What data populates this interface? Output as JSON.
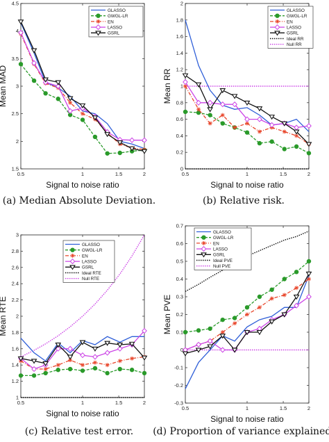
{
  "colors": {
    "GLASSO": "#2f5fd8",
    "GWGL-LR": "#2a9a2a",
    "EN": "#e8452a",
    "LASSO": "#cc44e6",
    "GSRL": "#111111",
    "Ideal": "#111111",
    "Null": "#cc44e6"
  },
  "chart_data": [
    {
      "type": "line",
      "caption": "(a) Median Absolute Deviation.",
      "xlabel": "Signal to noise ratio",
      "ylabel": "Mean MAD",
      "xlog": true,
      "xlim": [
        0.5,
        2
      ],
      "ylim": [
        1.5,
        4.5
      ],
      "xticks": [
        0.5,
        1,
        1.5,
        2
      ],
      "xticklabels": [
        "0.5",
        "1",
        "1.5",
        "2"
      ],
      "yticks": [
        1.5,
        2,
        2.5,
        3,
        3.5,
        4,
        4.5
      ],
      "yticklabels": [
        "1.5",
        "2",
        "2.5",
        "3",
        "3.5",
        "4",
        "4.5"
      ],
      "x": [
        0.5,
        0.58,
        0.66,
        0.76,
        0.87,
        1.0,
        1.15,
        1.32,
        1.52,
        1.74,
        2.0
      ],
      "series": [
        {
          "name": "GLASSO",
          "values": [
            4.15,
            3.6,
            3.07,
            2.97,
            2.82,
            2.55,
            2.5,
            2.32,
            2.0,
            1.95,
            1.87
          ]
        },
        {
          "name": "GWGL-LR",
          "values": [
            3.4,
            3.1,
            2.87,
            2.77,
            2.48,
            2.39,
            2.08,
            1.78,
            1.79,
            1.82,
            1.84
          ]
        },
        {
          "name": "EN",
          "values": [
            3.95,
            3.4,
            3.05,
            2.97,
            2.7,
            2.5,
            2.4,
            2.15,
            1.95,
            1.88,
            1.85
          ]
        },
        {
          "name": "LASSO",
          "values": [
            3.97,
            3.42,
            3.07,
            3.0,
            2.55,
            2.6,
            2.45,
            2.17,
            2.03,
            2.02,
            2.02
          ]
        },
        {
          "name": "GSRL",
          "values": [
            4.17,
            3.65,
            3.12,
            3.07,
            2.78,
            2.65,
            2.43,
            2.13,
            1.98,
            1.87,
            1.82
          ]
        }
      ]
    },
    {
      "type": "line",
      "caption": "(b) Relative risk.",
      "xlabel": "Signal to noise ratio",
      "ylabel": "Mean RR",
      "xlog": true,
      "xlim": [
        0.5,
        2
      ],
      "ylim": [
        0,
        2
      ],
      "xticks": [
        0.5,
        1,
        1.5,
        2
      ],
      "xticklabels": [
        "0.5",
        "1",
        "1.5",
        "2"
      ],
      "yticks": [
        0,
        0.2,
        0.4,
        0.6,
        0.8,
        1,
        1.2,
        1.4,
        1.6,
        1.8,
        2
      ],
      "yticklabels": [
        "0",
        "0.2",
        "0.4",
        "0.6",
        "0.8",
        "1",
        "1.2",
        "1.4",
        "1.6",
        "1.8",
        "2"
      ],
      "x": [
        0.5,
        0.58,
        0.66,
        0.76,
        0.87,
        1.0,
        1.15,
        1.32,
        1.52,
        1.74,
        2.0
      ],
      "series": [
        {
          "name": "GLASSO",
          "values": [
            1.8,
            1.25,
            0.95,
            0.77,
            0.72,
            0.74,
            0.65,
            0.53,
            0.55,
            0.6,
            0.45
          ]
        },
        {
          "name": "GWGL-LR",
          "values": [
            0.69,
            0.68,
            0.65,
            0.55,
            0.5,
            0.44,
            0.31,
            0.33,
            0.24,
            0.27,
            0.19
          ]
        },
        {
          "name": "EN",
          "values": [
            1.0,
            0.72,
            0.55,
            0.65,
            0.5,
            0.55,
            0.45,
            0.5,
            0.45,
            0.4,
            0.3
          ]
        },
        {
          "name": "LASSO",
          "values": [
            1.05,
            0.8,
            0.8,
            0.78,
            0.78,
            0.6,
            0.6,
            0.53,
            0.55,
            0.5,
            0.52
          ]
        },
        {
          "name": "GSRL",
          "values": [
            1.13,
            1.02,
            0.72,
            0.95,
            0.88,
            0.8,
            0.73,
            0.63,
            0.55,
            0.45,
            0.3
          ]
        },
        {
          "name": "Ideal RR",
          "values": [
            0,
            0,
            0,
            0,
            0,
            0,
            0,
            0,
            0,
            0,
            0
          ]
        },
        {
          "name": "Null RR",
          "values": [
            1,
            1,
            1,
            1,
            1,
            1,
            1,
            1,
            1,
            1,
            1
          ]
        }
      ]
    },
    {
      "type": "line",
      "caption": "(c) Relative test error.",
      "xlabel": "Signal to noise ratio",
      "ylabel": "Mean RTE",
      "xlog": true,
      "xlim": [
        0.5,
        2
      ],
      "ylim": [
        1,
        3
      ],
      "xticks": [
        0.5,
        1,
        1.5,
        2
      ],
      "xticklabels": [
        "0.5",
        "1",
        "1.5",
        "2"
      ],
      "yticks": [
        1,
        1.2,
        1.4,
        1.6,
        1.8,
        2,
        2.2,
        2.4,
        2.6,
        2.8,
        3
      ],
      "yticklabels": [
        "1",
        "1.2",
        "1.4",
        "1.6",
        "1.8",
        "2",
        "2.2",
        "2.4",
        "2.6",
        "2.8",
        "3"
      ],
      "x": [
        0.5,
        0.58,
        0.66,
        0.76,
        0.87,
        1.0,
        1.15,
        1.32,
        1.52,
        1.74,
        2.0
      ],
      "series": [
        {
          "name": "GLASSO",
          "values": [
            1.73,
            1.55,
            1.45,
            1.67,
            1.55,
            1.7,
            1.65,
            1.75,
            1.68,
            1.75,
            1.75
          ]
        },
        {
          "name": "GWGL-LR",
          "values": [
            1.27,
            1.27,
            1.3,
            1.34,
            1.35,
            1.33,
            1.36,
            1.3,
            1.35,
            1.34,
            1.3
          ]
        },
        {
          "name": "EN",
          "values": [
            1.45,
            1.35,
            1.35,
            1.4,
            1.46,
            1.4,
            1.43,
            1.4,
            1.45,
            1.48,
            1.5
          ]
        },
        {
          "name": "LASSO",
          "values": [
            1.48,
            1.35,
            1.4,
            1.6,
            1.6,
            1.52,
            1.5,
            1.55,
            1.6,
            1.65,
            1.82
          ]
        },
        {
          "name": "GSRL",
          "values": [
            1.48,
            1.45,
            1.42,
            1.65,
            1.5,
            1.68,
            1.6,
            1.67,
            1.65,
            1.66,
            1.49
          ]
        },
        {
          "name": "Ideal RTE",
          "values": [
            1,
            1,
            1,
            1,
            1,
            1,
            1,
            1,
            1,
            1,
            1
          ]
        },
        {
          "name": "Null RTE",
          "values": [
            1.5,
            1.58,
            1.66,
            1.76,
            1.87,
            2.0,
            2.15,
            2.32,
            2.52,
            2.74,
            3.0
          ]
        }
      ]
    },
    {
      "type": "line",
      "caption": "(d) Proportion of variance explained.",
      "xlabel": "Signal to noise ratio",
      "ylabel": "Mean PVE",
      "xlog": true,
      "xlim": [
        0.5,
        2
      ],
      "ylim": [
        -0.3,
        0.7
      ],
      "xticks": [
        0.5,
        1,
        1.5,
        2
      ],
      "xticklabels": [
        "0.5",
        "1",
        "1.5",
        "2"
      ],
      "yticks": [
        -0.3,
        -0.2,
        -0.1,
        0,
        0.1,
        0.2,
        0.3,
        0.4,
        0.5,
        0.6,
        0.7
      ],
      "yticklabels": [
        "-0.3",
        "-0.2",
        "-0.1",
        "0",
        "0.1",
        "0.2",
        "0.3",
        "0.4",
        "0.5",
        "0.6",
        "0.7"
      ],
      "x": [
        0.5,
        0.58,
        0.66,
        0.76,
        0.87,
        1.0,
        1.15,
        1.32,
        1.52,
        1.74,
        2.0
      ],
      "series": [
        {
          "name": "GLASSO",
          "values": [
            -0.22,
            -0.07,
            0.0,
            0.08,
            0.05,
            0.13,
            0.17,
            0.19,
            0.24,
            0.24,
            0.42
          ]
        },
        {
          "name": "GWGL-LR",
          "values": [
            0.1,
            0.11,
            0.12,
            0.17,
            0.18,
            0.24,
            0.3,
            0.34,
            0.4,
            0.44,
            0.5
          ]
        },
        {
          "name": "EN",
          "values": [
            0.0,
            0.03,
            0.05,
            0.1,
            0.15,
            0.2,
            0.24,
            0.29,
            0.31,
            0.35,
            0.4
          ]
        },
        {
          "name": "LASSO",
          "values": [
            0.0,
            0.03,
            0.05,
            0.0,
            0.0,
            0.1,
            0.12,
            0.17,
            0.2,
            0.25,
            0.3
          ]
        },
        {
          "name": "GSRL",
          "values": [
            -0.02,
            0.0,
            0.02,
            0.08,
            0.0,
            0.1,
            0.1,
            0.16,
            0.2,
            0.3,
            0.43
          ]
        },
        {
          "name": "Ideal PVE",
          "values": [
            0.33,
            0.37,
            0.41,
            0.45,
            0.49,
            0.53,
            0.56,
            0.59,
            0.62,
            0.64,
            0.67
          ]
        },
        {
          "name": "Null PVE",
          "values": [
            0,
            0,
            0,
            0,
            0,
            0,
            0,
            0,
            0,
            0,
            0
          ]
        }
      ]
    }
  ]
}
